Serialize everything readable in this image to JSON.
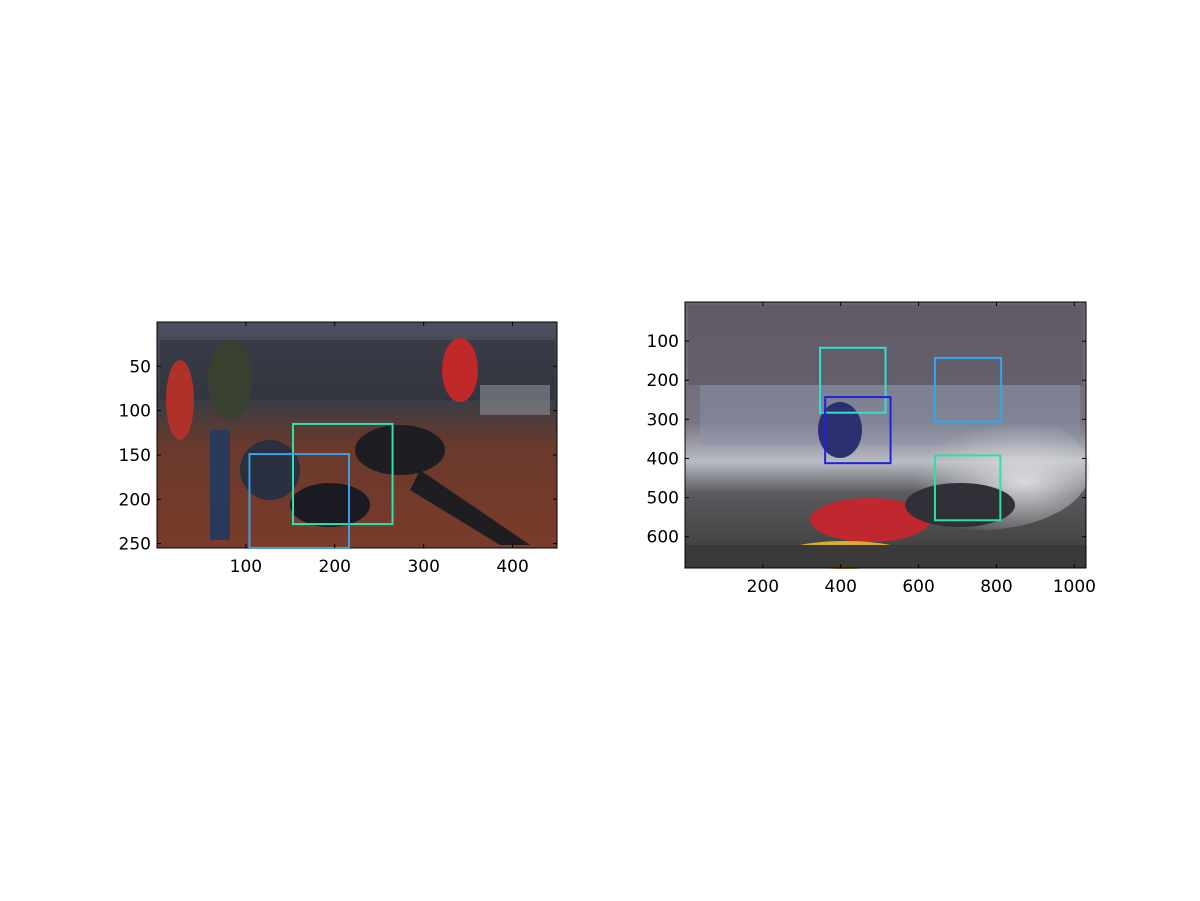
{
  "figure": {
    "panels": [
      {
        "id": "left",
        "image_name": "crowd-fight-photo",
        "image_description_colors": {
          "ground": "#7a3b2a",
          "crowd": "#3a3a40",
          "accent": "#c0282a"
        },
        "x_range": [
          0,
          450
        ],
        "y_range": [
          0,
          255
        ],
        "x_ticks": [
          100,
          200,
          300,
          400
        ],
        "y_ticks": [
          50,
          100,
          150,
          200,
          250
        ],
        "boxes": [
          {
            "x0": 153,
            "y0": 115,
            "x1": 265,
            "y1": 228,
            "color": "#2fe0b0"
          },
          {
            "x0": 104,
            "y0": 149,
            "x1": 216,
            "y1": 255,
            "color": "#3aa0e0"
          }
        ]
      },
      {
        "id": "right",
        "image_name": "race-car-crash-photo",
        "image_description_colors": {
          "track": "#3a3a3a",
          "crowd": "#6a6a70",
          "smoke": "#d8d8d8"
        },
        "x_range": [
          0,
          1030
        ],
        "y_range": [
          0,
          680
        ],
        "x_ticks": [
          200,
          400,
          600,
          800,
          1000
        ],
        "y_ticks": [
          100,
          200,
          300,
          400,
          500,
          600
        ],
        "boxes": [
          {
            "x0": 347,
            "y0": 117,
            "x1": 515,
            "y1": 283,
            "color": "#2fe0d0"
          },
          {
            "x0": 642,
            "y0": 143,
            "x1": 812,
            "y1": 306,
            "color": "#2aa8f0"
          },
          {
            "x0": 360,
            "y0": 243,
            "x1": 528,
            "y1": 412,
            "color": "#2020e0"
          },
          {
            "x0": 642,
            "y0": 392,
            "x1": 810,
            "y1": 558,
            "color": "#30e0a0"
          }
        ]
      }
    ]
  }
}
